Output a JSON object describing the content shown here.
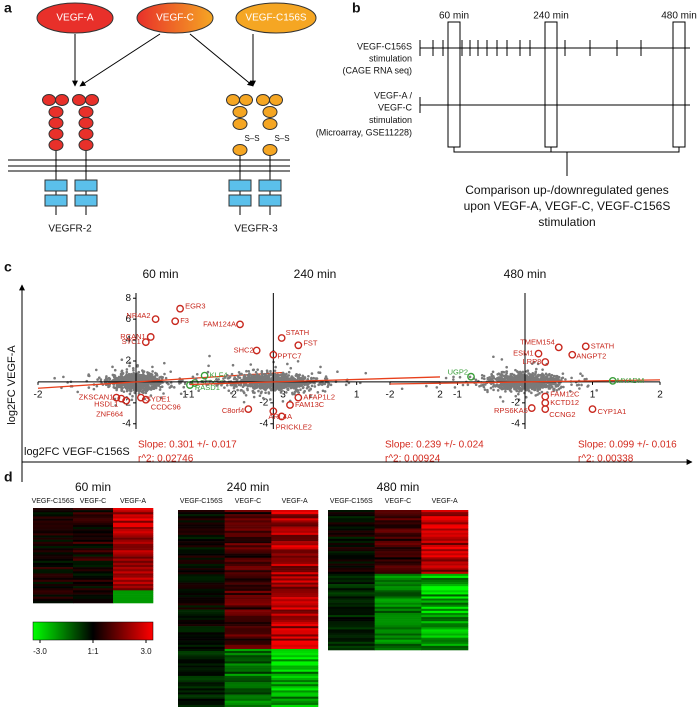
{
  "panel_labels": [
    "a",
    "b",
    "c",
    "d"
  ],
  "panel_a": {
    "ligands": [
      "VEGF-A",
      "VEGF-C",
      "VEGF-C156S"
    ],
    "disulfide_labels": [
      "S–S",
      "S–S"
    ],
    "receptors": [
      "VEGFR-2",
      "VEGFR-3"
    ]
  },
  "panel_b": {
    "times": [
      "60 min",
      "240 min",
      "480 min"
    ],
    "rows": [
      [
        "VEGF-C156S",
        "stimulation",
        "(CAGE RNA seq)"
      ],
      [
        "VEGF-A /",
        "VEGF-C",
        "stimulation",
        "(Microarray, GSE11228)"
      ]
    ],
    "comparison": [
      "Comparison up-/downregulated genes",
      "upon VEGF-A, VEGF-C, VEGF-C156S",
      "stimulation"
    ]
  },
  "panel_c": {
    "ylabel": "log2FC VEGF-A",
    "xlabel": "log2FC VEGF-C156S"
  },
  "chart_data": [
    {
      "type": "scatter",
      "title": "60 min",
      "xlim": [
        -2,
        3
      ],
      "ylim": [
        -4.5,
        8.5
      ],
      "xticks": [
        -2,
        1,
        2,
        3
      ],
      "yticks": [
        -4,
        -2,
        2,
        4,
        6,
        8
      ],
      "fit": {
        "slope": 0.301,
        "label": "Slope: 0.301 +/- 0.017",
        "r2_label": "r^2: 0.02746",
        "color": "#e8401c"
      },
      "genes": [
        {
          "name": "EGR3",
          "x": 0.9,
          "y": 7,
          "color": "#c8281e"
        },
        {
          "name": "F3",
          "x": 0.8,
          "y": 5.8,
          "color": "#c8281e"
        },
        {
          "name": "NR4A2",
          "x": 0.4,
          "y": 6,
          "color": "#c8281e"
        },
        {
          "name": "RCAN1",
          "x": 0.3,
          "y": 4.3,
          "color": "#c8281e"
        },
        {
          "name": "STC1",
          "x": 0.2,
          "y": 3.8,
          "color": "#c8281e"
        },
        {
          "name": "KLF4",
          "x": 1.4,
          "y": 0.6,
          "color": "#3a9e3a"
        },
        {
          "name": "SOX18",
          "x": 1.2,
          "y": -0.1,
          "color": "#3a9e3a"
        },
        {
          "name": "RASD1",
          "x": 1.1,
          "y": -0.3,
          "color": "#3a9e3a"
        },
        {
          "name": "ZKSCAN1",
          "x": -0.4,
          "y": -1.5,
          "color": "#c8281e"
        },
        {
          "name": "HSDL1",
          "x": -0.3,
          "y": -1.6,
          "color": "#c8281e"
        },
        {
          "name": "ZNF664",
          "x": -0.2,
          "y": -1.8,
          "color": "#c8281e"
        },
        {
          "name": "SYDE1",
          "x": 0.1,
          "y": -1.5,
          "color": "#c8281e"
        },
        {
          "name": "CCDC96",
          "x": 0.2,
          "y": -1.7,
          "color": "#c8281e"
        }
      ]
    },
    {
      "type": "scatter",
      "title": "240 min",
      "xlim": [
        -1,
        2
      ],
      "ylim": [
        -4.5,
        8.5
      ],
      "xticks": [
        -1,
        1,
        2
      ],
      "yticks": [
        -4,
        -2
      ],
      "fit": {
        "slope": 0.239,
        "label": "Slope: 0.239 +/- 0.024",
        "r2_label": "r^2: 0.00924",
        "color": "#e8401c"
      },
      "genes": [
        {
          "name": "FAM124A",
          "x": -0.4,
          "y": 5.5,
          "color": "#c8281e"
        },
        {
          "name": "STATH",
          "x": 0.1,
          "y": 4.2,
          "color": "#c8281e"
        },
        {
          "name": "FST",
          "x": 0.3,
          "y": 3.5,
          "color": "#c8281e"
        },
        {
          "name": "SHC2",
          "x": -0.2,
          "y": 3,
          "color": "#c8281e"
        },
        {
          "name": "PPTC7",
          "x": 0,
          "y": 2.6,
          "color": "#c8281e"
        },
        {
          "name": "AFAP1L2",
          "x": 0.3,
          "y": -1.5,
          "color": "#c8281e"
        },
        {
          "name": "FAM13C",
          "x": 0.2,
          "y": -2.2,
          "color": "#c8281e"
        },
        {
          "name": "C8orf4",
          "x": -0.3,
          "y": -2.6,
          "color": "#c8281e"
        },
        {
          "name": "ARL4A",
          "x": 0,
          "y": -2.8,
          "color": "#c8281e"
        },
        {
          "name": "PRICKLE2",
          "x": 0.1,
          "y": -3.3,
          "color": "#c8281e"
        }
      ]
    },
    {
      "type": "scatter",
      "title": "480 min",
      "xlim": [
        -2,
        2
      ],
      "ylim": [
        -4.5,
        8.5
      ],
      "xticks": [
        -2,
        -1,
        1,
        2
      ],
      "yticks": [
        -4,
        -2
      ],
      "fit": {
        "slope": 0.099,
        "label": "Slope: 0.099 +/- 0.016",
        "r2_label": "r^2: 0.00338",
        "color": "#e8401c"
      },
      "genes": [
        {
          "name": "TMEM154",
          "x": 0.5,
          "y": 3.3,
          "color": "#c8281e"
        },
        {
          "name": "STATH",
          "x": 0.9,
          "y": 3.4,
          "color": "#c8281e"
        },
        {
          "name": "ESM1",
          "x": 0.2,
          "y": 2.7,
          "color": "#c8281e"
        },
        {
          "name": "ANGPT2",
          "x": 0.7,
          "y": 2.6,
          "color": "#c8281e"
        },
        {
          "name": "LRP8",
          "x": 0.3,
          "y": 1.9,
          "color": "#c8281e"
        },
        {
          "name": "UGP2",
          "x": -0.8,
          "y": 0.5,
          "color": "#3a9e3a"
        },
        {
          "name": "MYADM",
          "x": 1.3,
          "y": 0.1,
          "color": "#3a9e3a"
        },
        {
          "name": "FAM12C",
          "x": 0.3,
          "y": -1.4,
          "color": "#c8281e"
        },
        {
          "name": "KCTD12",
          "x": 0.3,
          "y": -2,
          "color": "#c8281e"
        },
        {
          "name": "RPS6KA5",
          "x": 0.1,
          "y": -2.5,
          "color": "#c8281e"
        },
        {
          "name": "CCNG2",
          "x": 0.3,
          "y": -2.6,
          "color": "#c8281e"
        },
        {
          "name": "CYP1A1",
          "x": 1,
          "y": -2.6,
          "color": "#c8281e"
        }
      ]
    }
  ],
  "panel_d": {
    "titles": [
      "60 min",
      "240 min",
      "480 min"
    ],
    "columns": [
      "VEGF-C156S",
      "VEGF-C",
      "VEGF-A"
    ],
    "colorbar": {
      "lim": [
        -3,
        3
      ],
      "ticks": [
        {
          "value": -3,
          "label": "-3.0"
        },
        {
          "value": 0,
          "label": "1:1"
        },
        {
          "value": 3,
          "label": "3.0"
        }
      ]
    }
  }
}
